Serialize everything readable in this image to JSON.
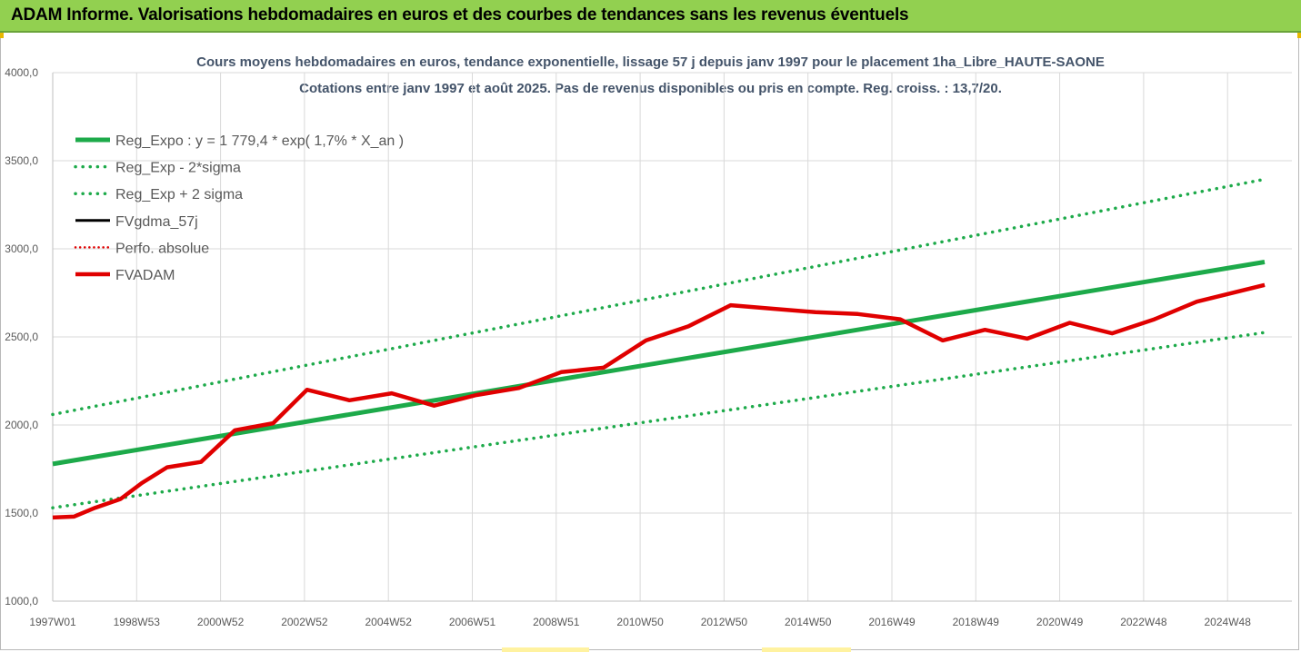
{
  "banner": {
    "title": "ADAM Informe. Valorisations hebdomadaires en euros et des courbes de tendances sans les revenus éventuels"
  },
  "colors": {
    "banner": "#92d050",
    "trend": "#1daa4a",
    "band": "#1daa4a",
    "fvgdma": "#000000",
    "perfo": "#e00000",
    "fvadam": "#e00000",
    "title": "#44546a",
    "grid": "#d9d9d9"
  },
  "chart_data": {
    "type": "line",
    "title": "Cours moyens hebdomadaires en euros, tendance exponentielle, lissage 57 j depuis janv 1997 pour le placement 1ha_Libre_HAUTE-SAONE",
    "subtitle": "Cotations entre janv 1997 et août 2025. Pas de revenus disponibles ou pris en compte. Reg. croiss. : 13,7/20.",
    "xlabel": "",
    "ylabel": "",
    "ylim": [
      1000,
      4000
    ],
    "yticks": [
      "1000,0",
      "1500,0",
      "2000,0",
      "2500,0",
      "3000,0",
      "3500,0",
      "4000,0"
    ],
    "x_ticks": [
      "1997W01",
      "1998W53",
      "2000W52",
      "2002W52",
      "2004W52",
      "2006W51",
      "2008W51",
      "2010W50",
      "2012W50",
      "2014W50",
      "2016W49",
      "2018W49",
      "2020W49",
      "2022W48",
      "2024W48"
    ],
    "x_range": [
      1997.0,
      2025.6
    ],
    "grid": true,
    "legend_position": "top-left",
    "series": [
      {
        "name": "Reg_Expo : y = 1 779,4 * exp( 1,7% *  X_an )",
        "style": "solid-thick",
        "points": [
          [
            1997.0,
            1779
          ],
          [
            2025.6,
            2925
          ]
        ]
      },
      {
        "name": "Reg_Exp - 2*sigma",
        "style": "dotted",
        "points": [
          [
            1997.0,
            1530
          ],
          [
            2025.6,
            2525
          ]
        ]
      },
      {
        "name": "Reg_Exp + 2 sigma",
        "style": "dotted",
        "points": [
          [
            1997.0,
            2060
          ],
          [
            2025.6,
            3395
          ]
        ]
      },
      {
        "name": "FVgdma_57j",
        "style": "solid-thin",
        "points": [
          [
            1997.0,
            1475
          ],
          [
            1997.5,
            1480
          ],
          [
            1998.0,
            1530
          ],
          [
            1998.6,
            1580
          ],
          [
            1999.1,
            1670
          ],
          [
            1999.7,
            1760
          ],
          [
            2000.5,
            1790
          ],
          [
            2001.3,
            1970
          ],
          [
            2002.2,
            2010
          ],
          [
            2003.0,
            2200
          ],
          [
            2004.0,
            2140
          ],
          [
            2005.0,
            2180
          ],
          [
            2006.0,
            2110
          ],
          [
            2007.0,
            2170
          ],
          [
            2008.0,
            2210
          ],
          [
            2009.0,
            2300
          ],
          [
            2010.0,
            2325
          ],
          [
            2011.0,
            2480
          ],
          [
            2012.0,
            2560
          ],
          [
            2013.0,
            2680
          ],
          [
            2014.0,
            2660
          ],
          [
            2015.0,
            2640
          ],
          [
            2016.0,
            2630
          ],
          [
            2017.0,
            2600
          ],
          [
            2018.0,
            2480
          ],
          [
            2019.0,
            2540
          ],
          [
            2020.0,
            2490
          ],
          [
            2021.0,
            2580
          ],
          [
            2022.0,
            2520
          ],
          [
            2023.0,
            2600
          ],
          [
            2024.0,
            2700
          ],
          [
            2025.6,
            2795
          ]
        ]
      },
      {
        "name": "Perfo. absolue",
        "style": "dotted-thin",
        "points": []
      },
      {
        "name": "FVADAM",
        "style": "solid-thick",
        "points": [
          [
            1997.0,
            1475
          ],
          [
            1997.5,
            1480
          ],
          [
            1998.0,
            1530
          ],
          [
            1998.6,
            1580
          ],
          [
            1999.1,
            1670
          ],
          [
            1999.7,
            1760
          ],
          [
            2000.5,
            1790
          ],
          [
            2001.3,
            1970
          ],
          [
            2002.2,
            2010
          ],
          [
            2003.0,
            2200
          ],
          [
            2004.0,
            2140
          ],
          [
            2005.0,
            2180
          ],
          [
            2006.0,
            2110
          ],
          [
            2007.0,
            2170
          ],
          [
            2008.0,
            2210
          ],
          [
            2009.0,
            2300
          ],
          [
            2010.0,
            2325
          ],
          [
            2011.0,
            2480
          ],
          [
            2012.0,
            2560
          ],
          [
            2013.0,
            2680
          ],
          [
            2014.0,
            2660
          ],
          [
            2015.0,
            2640
          ],
          [
            2016.0,
            2630
          ],
          [
            2017.0,
            2600
          ],
          [
            2018.0,
            2480
          ],
          [
            2019.0,
            2540
          ],
          [
            2020.0,
            2490
          ],
          [
            2021.0,
            2580
          ],
          [
            2022.0,
            2520
          ],
          [
            2023.0,
            2600
          ],
          [
            2024.0,
            2700
          ],
          [
            2025.6,
            2795
          ]
        ]
      }
    ]
  }
}
